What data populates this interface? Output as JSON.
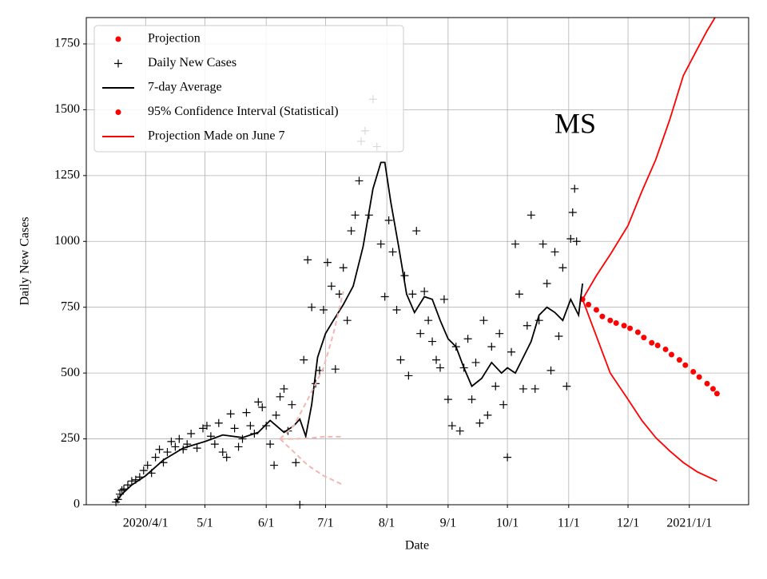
{
  "chart_data": {
    "type": "scatter",
    "xlabel": "Date",
    "ylabel": "Daily New Cases",
    "annotation": "MS",
    "xlim": [
      "2020-03-02",
      "2021-01-31"
    ],
    "xticks": [
      {
        "value": "2020-04-01",
        "label": "2020/4/1"
      },
      {
        "value": "2020-05-01",
        "label": "5/1"
      },
      {
        "value": "2020-06-01",
        "label": "6/1"
      },
      {
        "value": "2020-07-01",
        "label": "7/1"
      },
      {
        "value": "2020-08-01",
        "label": "8/1"
      },
      {
        "value": "2020-09-01",
        "label": "9/1"
      },
      {
        "value": "2020-10-01",
        "label": "10/1"
      },
      {
        "value": "2020-11-01",
        "label": "11/1"
      },
      {
        "value": "2020-12-01",
        "label": "12/1"
      },
      {
        "value": "2021-01-01",
        "label": "2021/1/1"
      }
    ],
    "ylim": [
      0,
      1850
    ],
    "yticks": [
      0,
      250,
      500,
      750,
      1000,
      1250,
      1500,
      1750
    ],
    "grid": true,
    "legend": "upper left",
    "series": [
      {
        "name": "Projection",
        "color": "#ff0000",
        "style": "dot",
        "x": [
          "2020-11-08",
          "2020-11-11",
          "2020-11-15",
          "2020-11-18",
          "2020-11-22",
          "2020-11-25",
          "2020-11-29",
          "2020-12-02",
          "2020-12-06",
          "2020-12-09",
          "2020-12-13",
          "2020-12-16",
          "2020-12-20",
          "2020-12-23",
          "2020-12-27",
          "2020-12-30",
          "2021-01-03",
          "2021-01-06",
          "2021-01-10",
          "2021-01-13",
          "2021-01-15"
        ],
        "values": [
          780,
          760,
          740,
          715,
          700,
          690,
          680,
          670,
          655,
          635,
          615,
          605,
          590,
          570,
          550,
          530,
          505,
          485,
          460,
          440,
          422
        ]
      },
      {
        "name": "Daily New Cases",
        "color": "#000000",
        "style": "plus",
        "x": [
          "2020-03-17",
          "2020-03-18",
          "2020-03-19",
          "2020-03-20",
          "2020-03-21",
          "2020-03-23",
          "2020-03-25",
          "2020-03-27",
          "2020-03-29",
          "2020-03-31",
          "2020-04-02",
          "2020-04-04",
          "2020-04-06",
          "2020-04-08",
          "2020-04-10",
          "2020-04-12",
          "2020-04-14",
          "2020-04-16",
          "2020-04-18",
          "2020-04-20",
          "2020-04-22",
          "2020-04-24",
          "2020-04-27",
          "2020-04-30",
          "2020-05-02",
          "2020-05-04",
          "2020-05-06",
          "2020-05-08",
          "2020-05-10",
          "2020-05-12",
          "2020-05-14",
          "2020-05-16",
          "2020-05-18",
          "2020-05-20",
          "2020-05-22",
          "2020-05-24",
          "2020-05-26",
          "2020-05-28",
          "2020-05-30",
          "2020-06-01",
          "2020-06-03",
          "2020-06-05",
          "2020-06-06",
          "2020-06-08",
          "2020-06-10",
          "2020-06-12",
          "2020-06-14",
          "2020-06-16",
          "2020-06-18",
          "2020-06-20",
          "2020-06-22",
          "2020-06-24",
          "2020-06-26",
          "2020-06-28",
          "2020-06-30",
          "2020-07-02",
          "2020-07-04",
          "2020-07-06",
          "2020-07-08",
          "2020-07-10",
          "2020-07-12",
          "2020-07-14",
          "2020-07-16",
          "2020-07-18",
          "2020-07-19",
          "2020-07-21",
          "2020-07-23",
          "2020-07-25",
          "2020-07-27",
          "2020-07-29",
          "2020-07-31",
          "2020-08-02",
          "2020-08-04",
          "2020-08-06",
          "2020-08-08",
          "2020-08-10",
          "2020-08-12",
          "2020-08-14",
          "2020-08-16",
          "2020-08-18",
          "2020-08-20",
          "2020-08-22",
          "2020-08-24",
          "2020-08-26",
          "2020-08-28",
          "2020-08-30",
          "2020-09-01",
          "2020-09-03",
          "2020-09-05",
          "2020-09-07",
          "2020-09-09",
          "2020-09-11",
          "2020-09-13",
          "2020-09-15",
          "2020-09-17",
          "2020-09-19",
          "2020-09-21",
          "2020-09-23",
          "2020-09-25",
          "2020-09-27",
          "2020-09-29",
          "2020-10-01",
          "2020-10-03",
          "2020-10-05",
          "2020-10-07",
          "2020-10-09",
          "2020-10-11",
          "2020-10-13",
          "2020-10-15",
          "2020-10-17",
          "2020-10-19",
          "2020-10-21",
          "2020-10-23",
          "2020-10-25",
          "2020-10-27",
          "2020-10-29",
          "2020-10-31",
          "2020-11-02",
          "2020-11-03",
          "2020-11-04",
          "2020-11-05"
        ],
        "values": [
          10,
          20,
          40,
          55,
          60,
          75,
          90,
          95,
          105,
          130,
          150,
          120,
          180,
          210,
          160,
          200,
          240,
          220,
          250,
          210,
          230,
          270,
          215,
          290,
          300,
          260,
          230,
          310,
          200,
          180,
          345,
          290,
          220,
          250,
          350,
          300,
          270,
          390,
          370,
          300,
          230,
          150,
          340,
          410,
          440,
          280,
          380,
          160,
          0,
          550,
          930,
          750,
          460,
          510,
          740,
          920,
          830,
          515,
          800,
          900,
          700,
          1040,
          1100,
          1230,
          1380,
          1420,
          1100,
          1540,
          1360,
          990,
          790,
          1080,
          960,
          740,
          550,
          870,
          490,
          800,
          1040,
          650,
          810,
          700,
          620,
          550,
          520,
          780,
          400,
          300,
          600,
          280,
          520,
          630,
          400,
          540,
          310,
          700,
          340,
          600,
          450,
          650,
          380,
          180,
          580,
          990,
          800,
          440,
          680,
          1100,
          440,
          700,
          990,
          840,
          510,
          960,
          640,
          900,
          450,
          1010,
          1110,
          1200,
          1000
        ]
      },
      {
        "name": "7-day Average",
        "color": "#000000",
        "style": "line",
        "x": [
          "2020-03-17",
          "2020-03-20",
          "2020-03-25",
          "2020-04-01",
          "2020-04-10",
          "2020-04-20",
          "2020-05-01",
          "2020-05-10",
          "2020-05-20",
          "2020-05-28",
          "2020-06-03",
          "2020-06-10",
          "2020-06-15",
          "2020-06-18",
          "2020-06-21",
          "2020-06-24",
          "2020-06-27",
          "2020-07-01",
          "2020-07-05",
          "2020-07-10",
          "2020-07-15",
          "2020-07-20",
          "2020-07-25",
          "2020-07-29",
          "2020-07-31",
          "2020-08-03",
          "2020-08-07",
          "2020-08-11",
          "2020-08-15",
          "2020-08-20",
          "2020-08-24",
          "2020-08-28",
          "2020-09-01",
          "2020-09-05",
          "2020-09-09",
          "2020-09-13",
          "2020-09-18",
          "2020-09-23",
          "2020-09-28",
          "2020-10-01",
          "2020-10-05",
          "2020-10-09",
          "2020-10-13",
          "2020-10-17",
          "2020-10-21",
          "2020-10-25",
          "2020-10-29",
          "2020-11-02",
          "2020-11-06",
          "2020-11-08"
        ],
        "values": [
          10,
          40,
          75,
          110,
          170,
          215,
          240,
          265,
          255,
          275,
          320,
          275,
          300,
          325,
          260,
          380,
          560,
          650,
          700,
          760,
          830,
          980,
          1200,
          1300,
          1300,
          1150,
          980,
          800,
          730,
          790,
          780,
          700,
          630,
          600,
          520,
          450,
          480,
          540,
          500,
          520,
          500,
          560,
          620,
          720,
          750,
          730,
          700,
          780,
          720,
          840
        ]
      },
      {
        "name": "95% Confidence Interval (Statistical)",
        "color": "#ff0000",
        "style": "lines",
        "legend_marker": "dot",
        "lines": [
          {
            "x": [
              "2020-11-08",
              "2020-11-15",
              "2020-11-22",
              "2020-12-01",
              "2020-12-08",
              "2020-12-15",
              "2020-12-22",
              "2020-12-29",
              "2021-01-05",
              "2021-01-10",
              "2021-01-14"
            ],
            "values": [
              780,
              870,
              950,
              1060,
              1190,
              1310,
              1460,
              1630,
              1730,
              1800,
              1850
            ]
          },
          {
            "x": [
              "2020-11-08",
              "2020-11-15",
              "2020-11-22",
              "2020-12-01",
              "2020-12-08",
              "2020-12-15",
              "2020-12-22",
              "2020-12-29",
              "2021-01-05",
              "2021-01-15"
            ],
            "values": [
              780,
              640,
              500,
              400,
              320,
              255,
              205,
              160,
              125,
              90
            ]
          }
        ]
      },
      {
        "name": "Projection Made on June 7",
        "color": "#f4b6b0",
        "legend_color": "#ff0000",
        "style": "dashed",
        "lines": [
          {
            "x": [
              "2020-06-08",
              "2020-06-15",
              "2020-06-22",
              "2020-06-30",
              "2020-07-10"
            ],
            "values": [
              250,
              250,
              252,
              258,
              258
            ]
          },
          {
            "x": [
              "2020-06-08",
              "2020-06-15",
              "2020-06-22",
              "2020-06-30",
              "2020-07-05",
              "2020-07-10"
            ],
            "values": [
              250,
              300,
              400,
              520,
              650,
              810
            ]
          },
          {
            "x": [
              "2020-06-08",
              "2020-06-15",
              "2020-06-22",
              "2020-06-30",
              "2020-07-10"
            ],
            "values": [
              250,
              200,
              150,
              110,
              75
            ]
          }
        ]
      }
    ]
  }
}
